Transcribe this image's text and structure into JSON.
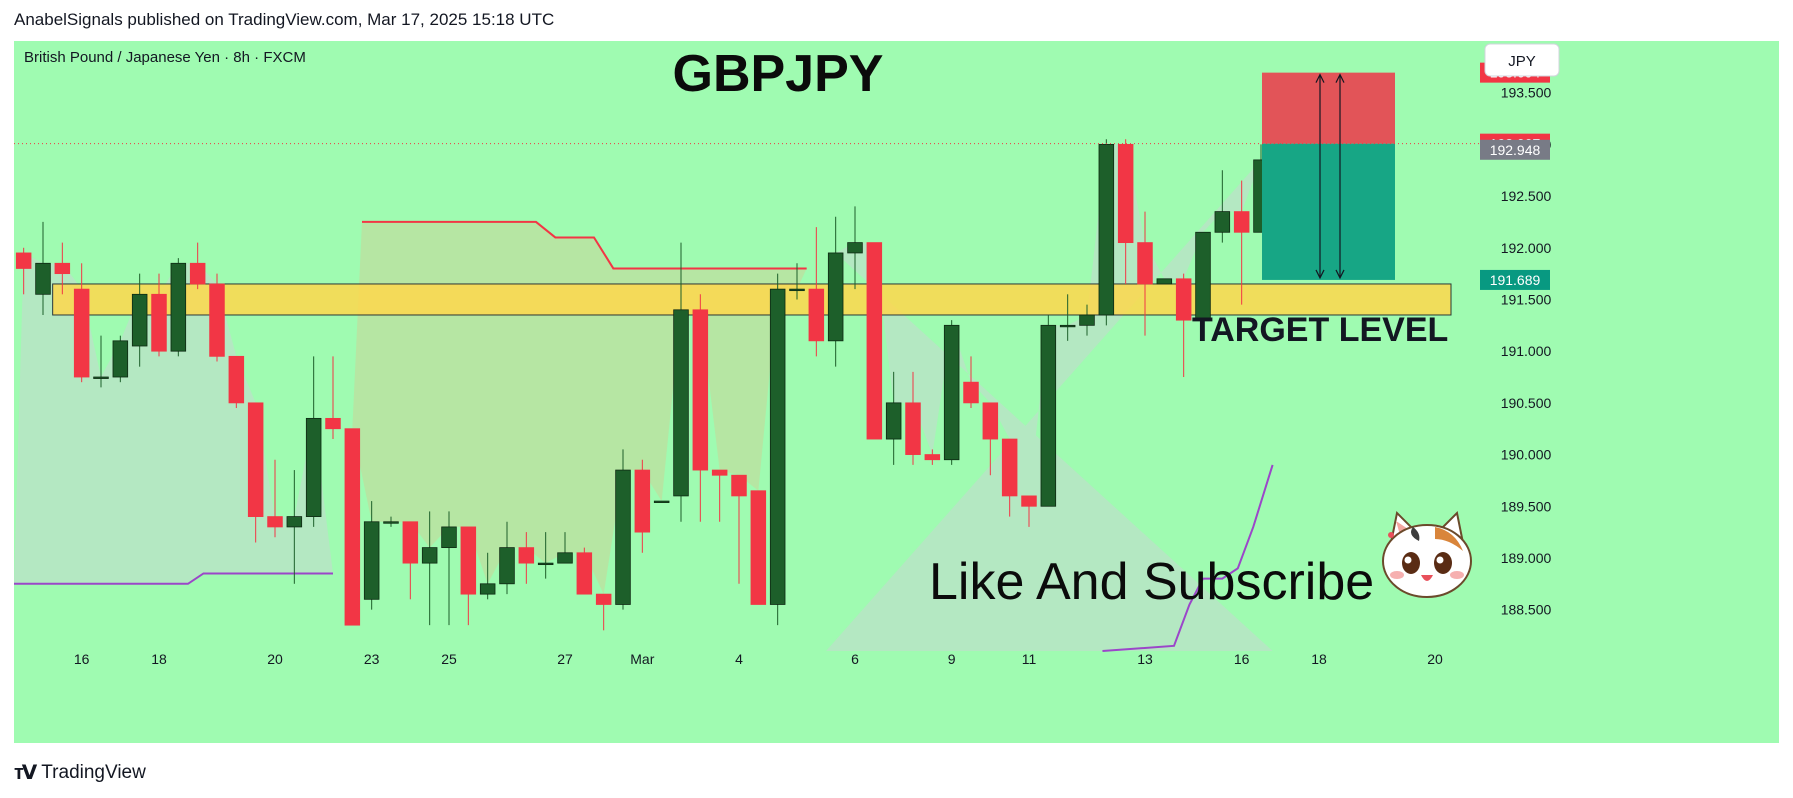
{
  "header": {
    "publisher": "AnabelSignals published on TradingView.com, Mar 17, 2025 15:18 UTC"
  },
  "footer": {
    "brand": "TradingView",
    "logo_icon": "tradingview-logo-icon"
  },
  "colors": {
    "background": "#9ffbb1",
    "up_candle": "#1d5f2a",
    "down_candle": "#f23645",
    "zone": "#ffd84d",
    "stop_box": "#e25458",
    "target_box": "#17a685",
    "upper_line": "#f23645",
    "lower_line": "#9b46c9"
  },
  "chart_data": {
    "type": "candlestick",
    "symbol_label": "British Pound / Japanese Yen · 8h · FXCM",
    "title": "GBPJPY",
    "currency_button": "JPY",
    "annotation_target": "TARGET LEVEL",
    "annotation_cta": "Like And Subscribe",
    "mascot_icon": "cat-mascot-icon",
    "ylim": [
      188.1,
      194.0
    ],
    "y_ticks": [
      193.5,
      193.0,
      192.5,
      192.0,
      191.5,
      191.0,
      190.5,
      190.0,
      189.5,
      189.0,
      188.5
    ],
    "y_tick_labels": [
      "193.500",
      "193.000",
      "192.500",
      "192.000",
      "191.500",
      "191.000",
      "190.500",
      "190.000",
      "189.500",
      "189.000",
      "188.500"
    ],
    "x_tick_labels": [
      {
        "label": "16",
        "i": 3
      },
      {
        "label": "18",
        "i": 7
      },
      {
        "label": "20",
        "i": 13
      },
      {
        "label": "23",
        "i": 18
      },
      {
        "label": "25",
        "i": 22
      },
      {
        "label": "27",
        "i": 28
      },
      {
        "label": "Mar",
        "i": 32
      },
      {
        "label": "4",
        "i": 37
      },
      {
        "label": "6",
        "i": 43
      },
      {
        "label": "9",
        "i": 48
      },
      {
        "label": "11",
        "i": 52
      },
      {
        "label": "13",
        "i": 58
      },
      {
        "label": "16",
        "i": 63
      },
      {
        "label": "18",
        "i": 67
      },
      {
        "label": "20",
        "i": 73
      }
    ],
    "price_labels": [
      {
        "value": 193.694,
        "text": "193.694",
        "color": "#f23645"
      },
      {
        "value": 193.007,
        "text": "193.007",
        "color": "#f23645"
      },
      {
        "value": 192.948,
        "text": "192.948",
        "color": "#787b86"
      },
      {
        "value": 191.689,
        "text": "191.689",
        "color": "#089981"
      }
    ],
    "candles": [
      {
        "o": 191.95,
        "h": 192.0,
        "l": 191.55,
        "c": 191.8
      },
      {
        "o": 191.55,
        "h": 192.25,
        "l": 191.35,
        "c": 191.85
      },
      {
        "o": 191.85,
        "h": 192.05,
        "l": 191.55,
        "c": 191.75
      },
      {
        "o": 191.6,
        "h": 191.85,
        "l": 190.7,
        "c": 190.75
      },
      {
        "o": 190.75,
        "h": 191.15,
        "l": 190.65,
        "c": 190.75
      },
      {
        "o": 190.75,
        "h": 191.15,
        "l": 190.7,
        "c": 191.1
      },
      {
        "o": 191.05,
        "h": 191.75,
        "l": 190.85,
        "c": 191.55
      },
      {
        "o": 191.55,
        "h": 191.75,
        "l": 190.95,
        "c": 191.0
      },
      {
        "o": 191.0,
        "h": 191.9,
        "l": 190.95,
        "c": 191.85
      },
      {
        "o": 191.85,
        "h": 192.05,
        "l": 191.6,
        "c": 191.65
      },
      {
        "o": 191.65,
        "h": 191.75,
        "l": 190.9,
        "c": 190.95
      },
      {
        "o": 190.95,
        "h": 190.95,
        "l": 190.45,
        "c": 190.5
      },
      {
        "o": 190.5,
        "h": 190.5,
        "l": 189.15,
        "c": 189.4
      },
      {
        "o": 189.4,
        "h": 189.95,
        "l": 189.2,
        "c": 189.3
      },
      {
        "o": 189.3,
        "h": 189.85,
        "l": 188.75,
        "c": 189.4
      },
      {
        "o": 189.4,
        "h": 190.95,
        "l": 189.3,
        "c": 190.35
      },
      {
        "o": 190.35,
        "h": 190.95,
        "l": 190.15,
        "c": 190.25
      },
      {
        "o": 190.25,
        "h": 190.25,
        "l": 188.35,
        "c": 188.35
      },
      {
        "o": 188.6,
        "h": 189.55,
        "l": 188.5,
        "c": 189.35
      },
      {
        "o": 189.35,
        "h": 189.4,
        "l": 189.3,
        "c": 189.35
      },
      {
        "o": 189.35,
        "h": 189.35,
        "l": 188.6,
        "c": 188.95
      },
      {
        "o": 188.95,
        "h": 189.45,
        "l": 188.35,
        "c": 189.1
      },
      {
        "o": 189.1,
        "h": 189.45,
        "l": 188.35,
        "c": 189.3
      },
      {
        "o": 189.3,
        "h": 189.3,
        "l": 188.35,
        "c": 188.65
      },
      {
        "o": 188.65,
        "h": 189.05,
        "l": 188.6,
        "c": 188.75
      },
      {
        "o": 188.75,
        "h": 189.35,
        "l": 188.65,
        "c": 189.1
      },
      {
        "o": 189.1,
        "h": 189.25,
        "l": 188.75,
        "c": 188.95
      },
      {
        "o": 188.95,
        "h": 189.25,
        "l": 188.8,
        "c": 188.95
      },
      {
        "o": 188.95,
        "h": 189.25,
        "l": 188.95,
        "c": 189.05
      },
      {
        "o": 189.05,
        "h": 189.1,
        "l": 188.65,
        "c": 188.65
      },
      {
        "o": 188.65,
        "h": 188.65,
        "l": 188.3,
        "c": 188.55
      },
      {
        "o": 188.55,
        "h": 190.05,
        "l": 188.5,
        "c": 189.85
      },
      {
        "o": 189.85,
        "h": 189.95,
        "l": 189.05,
        "c": 189.25
      },
      {
        "o": 189.55,
        "h": 189.55,
        "l": 189.55,
        "c": 189.55
      },
      {
        "o": 189.6,
        "h": 192.05,
        "l": 189.35,
        "c": 191.4
      },
      {
        "o": 191.4,
        "h": 191.55,
        "l": 189.35,
        "c": 189.85
      },
      {
        "o": 189.85,
        "h": 189.85,
        "l": 189.35,
        "c": 189.8
      },
      {
        "o": 189.8,
        "h": 189.8,
        "l": 188.75,
        "c": 189.6
      },
      {
        "o": 189.65,
        "h": 189.65,
        "l": 188.55,
        "c": 188.55
      },
      {
        "o": 188.55,
        "h": 191.75,
        "l": 188.35,
        "c": 191.6
      },
      {
        "o": 191.6,
        "h": 191.85,
        "l": 191.5,
        "c": 191.6
      },
      {
        "o": 191.6,
        "h": 192.2,
        "l": 190.95,
        "c": 191.1
      },
      {
        "o": 191.1,
        "h": 192.3,
        "l": 190.85,
        "c": 191.95
      },
      {
        "o": 191.95,
        "h": 192.4,
        "l": 191.6,
        "c": 192.05
      },
      {
        "o": 192.05,
        "h": 192.05,
        "l": 190.15,
        "c": 190.15
      },
      {
        "o": 190.15,
        "h": 190.8,
        "l": 189.9,
        "c": 190.5
      },
      {
        "o": 190.5,
        "h": 190.8,
        "l": 189.9,
        "c": 190.0
      },
      {
        "o": 190.0,
        "h": 190.05,
        "l": 189.9,
        "c": 189.95
      },
      {
        "o": 189.95,
        "h": 191.3,
        "l": 189.9,
        "c": 191.25
      },
      {
        "o": 190.7,
        "h": 190.95,
        "l": 190.45,
        "c": 190.5
      },
      {
        "o": 190.5,
        "h": 190.5,
        "l": 189.8,
        "c": 190.15
      },
      {
        "o": 190.15,
        "h": 190.15,
        "l": 189.4,
        "c": 189.6
      },
      {
        "o": 189.6,
        "h": 189.6,
        "l": 189.3,
        "c": 189.5
      },
      {
        "o": 189.5,
        "h": 191.35,
        "l": 189.5,
        "c": 191.25
      },
      {
        "o": 191.25,
        "h": 191.55,
        "l": 191.1,
        "c": 191.25
      },
      {
        "o": 191.25,
        "h": 191.45,
        "l": 191.15,
        "c": 191.35
      },
      {
        "o": 191.35,
        "h": 193.05,
        "l": 191.25,
        "c": 193.0
      },
      {
        "o": 193.0,
        "h": 193.05,
        "l": 191.65,
        "c": 192.05
      },
      {
        "o": 192.05,
        "h": 192.35,
        "l": 191.15,
        "c": 191.65
      },
      {
        "o": 191.65,
        "h": 191.7,
        "l": 191.65,
        "c": 191.7
      },
      {
        "o": 191.7,
        "h": 191.75,
        "l": 190.75,
        "c": 191.3
      },
      {
        "o": 191.3,
        "h": 192.15,
        "l": 191.25,
        "c": 192.15
      },
      {
        "o": 192.15,
        "h": 192.75,
        "l": 192.05,
        "c": 192.35
      },
      {
        "o": 192.35,
        "h": 192.65,
        "l": 191.45,
        "c": 192.15
      },
      {
        "o": 192.15,
        "h": 193.0,
        "l": 192.15,
        "c": 192.85
      },
      {
        "o": 192.85,
        "h": 193.2,
        "l": 192.45,
        "c": 193.0
      },
      {
        "o": 193.0,
        "h": 193.45,
        "l": 192.95,
        "c": 192.95
      }
    ],
    "zone": {
      "from": 191.35,
      "to": 191.65
    },
    "position": {
      "stop": 193.694,
      "entry": 193.007,
      "target": 191.689
    },
    "upper_line": [
      {
        "i": 17.5,
        "v": 192.25
      },
      {
        "i": 26.5,
        "v": 192.25
      },
      {
        "i": 27.5,
        "v": 192.1
      },
      {
        "i": 29.5,
        "v": 192.1
      },
      {
        "i": 30.5,
        "v": 191.8
      },
      {
        "i": 40.5,
        "v": 191.8
      }
    ],
    "lower_line": [
      {
        "i": -0.5,
        "v": 188.75
      },
      {
        "i": 8.5,
        "v": 188.75
      },
      {
        "i": 9.3,
        "v": 188.85
      },
      {
        "i": 16,
        "v": 188.85
      }
    ],
    "lower_line_2": [
      {
        "i": 55.8,
        "v": 188.1
      },
      {
        "i": 59.5,
        "v": 188.15
      },
      {
        "i": 60.3,
        "v": 188.55
      },
      {
        "i": 61,
        "v": 188.8
      },
      {
        "i": 62,
        "v": 188.8
      },
      {
        "i": 62.8,
        "v": 188.9
      },
      {
        "i": 63.6,
        "v": 189.3
      },
      {
        "i": 64.6,
        "v": 189.9
      }
    ]
  }
}
